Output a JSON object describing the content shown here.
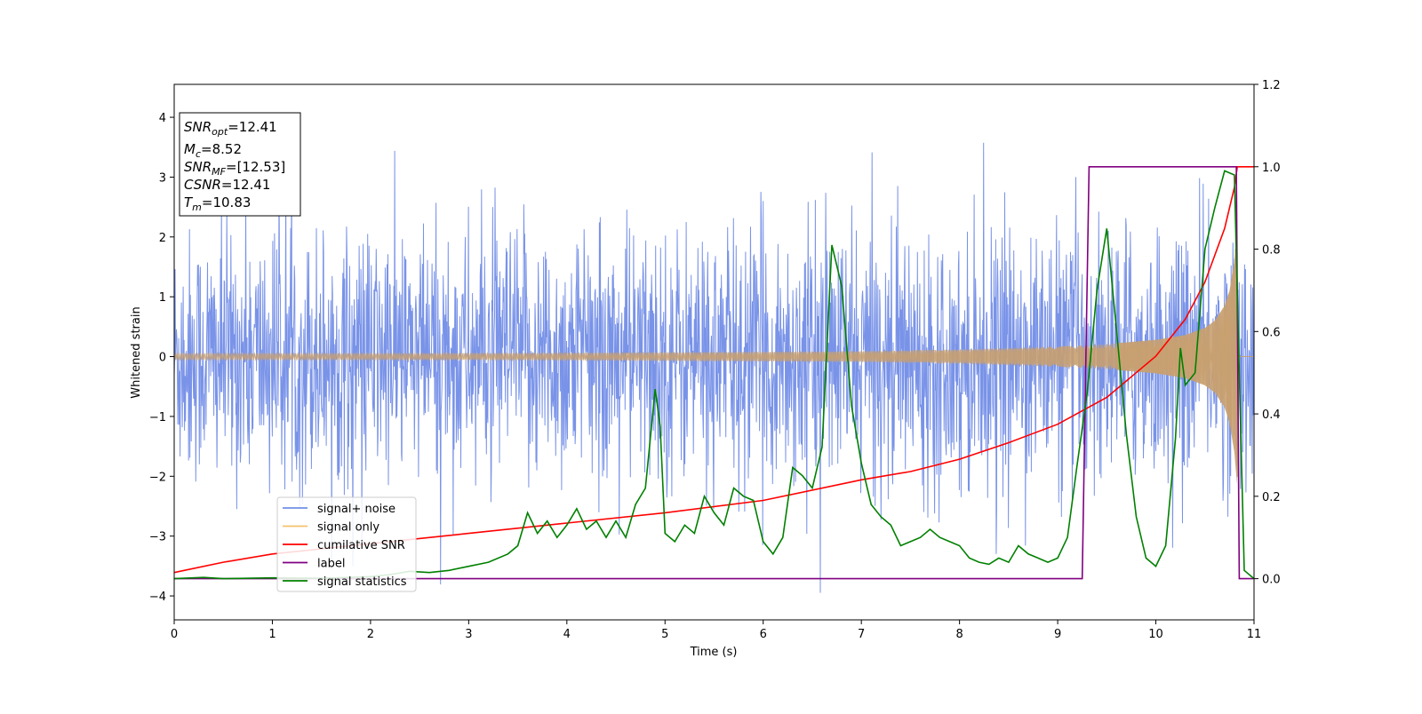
{
  "chart_data": {
    "type": "line",
    "xlabel": "Time (s)",
    "ylabel": "Whitened strain",
    "xlim": [
      0,
      11
    ],
    "ylim": [
      -4.4,
      4.55
    ],
    "y2lim": [
      -0.1,
      1.2
    ],
    "x_ticks": [
      "0",
      "1",
      "2",
      "3",
      "4",
      "5",
      "6",
      "7",
      "8",
      "9",
      "10",
      "11"
    ],
    "y_ticks": [
      "4",
      "3",
      "2",
      "1",
      "0",
      "−1",
      "−2",
      "−3",
      "−4"
    ],
    "y2_ticks": [
      "1.2",
      "1.0",
      "0.8",
      "0.6",
      "0.4",
      "0.2",
      "0.0"
    ],
    "info_box": [
      {
        "main": "SNR",
        "sub": "opt",
        "rest": "=12.41"
      },
      {
        "main": "M",
        "sub": "c",
        "rest": "=8.52"
      },
      {
        "main": "SNR",
        "sub": "MF",
        "rest": "=[12.53]"
      },
      {
        "main": "CSNR",
        "sub": "",
        "rest": "=12.41"
      },
      {
        "main": "T",
        "sub": "m",
        "rest": "=10.83"
      }
    ],
    "legend": {
      "placement": "lower-left",
      "entries": [
        {
          "label": "signal+ noise",
          "color": "#7090e6"
        },
        {
          "label": "signal only",
          "color": "#f5c26b"
        },
        {
          "label": "cumilative SNR",
          "color": "#ff0000"
        },
        {
          "label": "label",
          "color": "#800080"
        },
        {
          "label": "signal statistics",
          "color": "#008000"
        }
      ]
    },
    "series": [
      {
        "name": "signal+ noise",
        "axis": "left",
        "color": "#6a87e6",
        "description_level": "random noise amplitude ~±2.5 with spikes to ±4 across 0–11 s"
      },
      {
        "name": "signal only",
        "axis": "left",
        "color": "#c8a070",
        "envelope": {
          "x": [
            0,
            2,
            4,
            6,
            7,
            8,
            9,
            9.5,
            10,
            10.3,
            10.5,
            10.6,
            10.7,
            10.75,
            10.8,
            10.82,
            10.83
          ],
          "amp": [
            0.05,
            0.05,
            0.06,
            0.08,
            0.09,
            0.12,
            0.17,
            0.21,
            0.28,
            0.36,
            0.48,
            0.6,
            0.85,
            1.1,
            1.6,
            2.0,
            2.2
          ]
        }
      },
      {
        "name": "cumilative SNR",
        "axis": "right",
        "color": "#ff0000",
        "x": [
          0,
          0.5,
          1,
          2,
          3,
          4,
          5,
          6,
          7,
          7.5,
          8,
          8.5,
          9,
          9.5,
          10,
          10.3,
          10.5,
          10.7,
          10.8,
          10.83,
          11
        ],
        "y": [
          0.015,
          0.04,
          0.06,
          0.085,
          0.11,
          0.135,
          0.16,
          0.19,
          0.24,
          0.26,
          0.29,
          0.33,
          0.375,
          0.44,
          0.54,
          0.63,
          0.72,
          0.85,
          0.95,
          1.0,
          1.0
        ]
      },
      {
        "name": "label",
        "axis": "right",
        "color": "#800080",
        "x": [
          0,
          9.25,
          9.32,
          10.82,
          10.85,
          11
        ],
        "y": [
          0,
          0,
          1,
          1,
          0,
          0
        ]
      },
      {
        "name": "signal statistics",
        "axis": "right",
        "color": "#008000",
        "x": [
          0,
          0.3,
          0.5,
          1,
          1.5,
          2,
          2.2,
          2.4,
          2.6,
          2.8,
          3,
          3.2,
          3.4,
          3.5,
          3.6,
          3.7,
          3.8,
          3.9,
          4,
          4.1,
          4.2,
          4.3,
          4.4,
          4.5,
          4.6,
          4.7,
          4.8,
          4.9,
          4.95,
          5.0,
          5.1,
          5.2,
          5.3,
          5.4,
          5.5,
          5.6,
          5.7,
          5.8,
          5.9,
          6.0,
          6.1,
          6.2,
          6.3,
          6.4,
          6.5,
          6.6,
          6.7,
          6.8,
          6.9,
          7.0,
          7.1,
          7.2,
          7.3,
          7.4,
          7.5,
          7.6,
          7.7,
          7.8,
          7.9,
          8.0,
          8.1,
          8.2,
          8.3,
          8.4,
          8.5,
          8.6,
          8.7,
          8.8,
          8.9,
          9.0,
          9.1,
          9.2,
          9.3,
          9.4,
          9.5,
          9.6,
          9.7,
          9.8,
          9.9,
          10.0,
          10.1,
          10.2,
          10.25,
          10.3,
          10.4,
          10.5,
          10.6,
          10.7,
          10.8,
          10.85,
          10.9,
          11
        ],
        "y": [
          0.0,
          0.003,
          0.0,
          0.002,
          0.001,
          0.005,
          0.01,
          0.018,
          0.015,
          0.02,
          0.03,
          0.04,
          0.06,
          0.08,
          0.16,
          0.11,
          0.14,
          0.1,
          0.13,
          0.17,
          0.12,
          0.14,
          0.1,
          0.14,
          0.1,
          0.18,
          0.22,
          0.46,
          0.37,
          0.11,
          0.09,
          0.13,
          0.11,
          0.2,
          0.16,
          0.13,
          0.22,
          0.2,
          0.19,
          0.09,
          0.06,
          0.1,
          0.27,
          0.25,
          0.22,
          0.32,
          0.81,
          0.71,
          0.42,
          0.28,
          0.18,
          0.15,
          0.13,
          0.08,
          0.09,
          0.1,
          0.12,
          0.1,
          0.09,
          0.08,
          0.05,
          0.04,
          0.035,
          0.05,
          0.04,
          0.08,
          0.06,
          0.05,
          0.04,
          0.05,
          0.1,
          0.28,
          0.45,
          0.7,
          0.85,
          0.6,
          0.35,
          0.15,
          0.05,
          0.03,
          0.08,
          0.34,
          0.56,
          0.47,
          0.5,
          0.8,
          0.9,
          0.99,
          0.98,
          0.5,
          0.02,
          0.0
        ]
      }
    ]
  }
}
